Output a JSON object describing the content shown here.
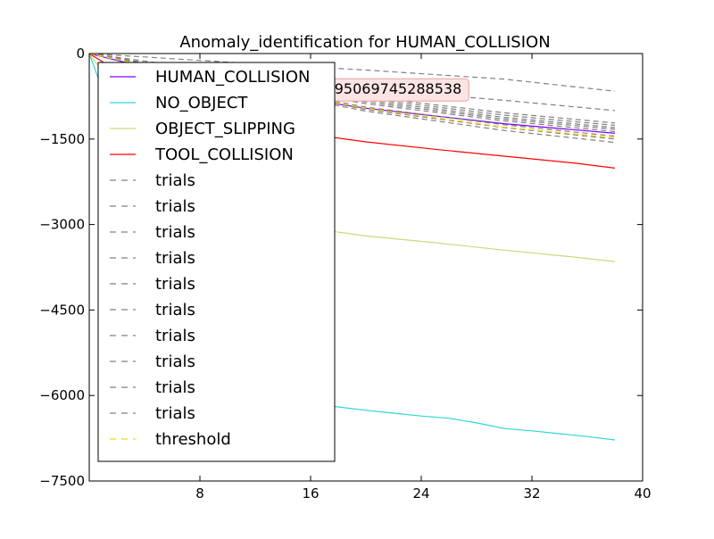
{
  "chart_data": {
    "type": "line",
    "title": "Anomaly_identification for HUMAN_COLLISION",
    "xlabel": "",
    "ylabel": "",
    "xlim": [
      0,
      40
    ],
    "ylim": [
      -7500,
      0
    ],
    "xticks": [
      8,
      16,
      24,
      32,
      40
    ],
    "yticks": [
      0,
      -1500,
      -3000,
      -4500,
      -6000,
      -7500
    ],
    "xtick_labels": [
      "8",
      "16",
      "24",
      "32",
      "40"
    ],
    "ytick_labels": [
      "0",
      "−1500",
      "−3000",
      "−4500",
      "−6000",
      "−7500"
    ],
    "grid": false,
    "legend_position": "upper-left",
    "annotation": {
      "text": "HUMAN_COLLISION: 89.95069745288538",
      "visible_text": "ON: 89.95069745288538",
      "x": 13.5,
      "y": -630
    },
    "series": [
      {
        "name": "HUMAN_COLLISION",
        "color": "#7f00ff",
        "style": "solid",
        "x": [
          0,
          10,
          20,
          30,
          38
        ],
        "y": [
          0,
          -600,
          -960,
          -1230,
          -1400
        ]
      },
      {
        "name": "NO_OBJECT",
        "color": "#2fd6d6",
        "style": "solid",
        "x": [
          0,
          6,
          12,
          16,
          18,
          20,
          22,
          24,
          26,
          27,
          28,
          29,
          30,
          32,
          34,
          36,
          38
        ],
        "y": [
          0,
          -4000,
          -5700,
          -6150,
          -6200,
          -6260,
          -6310,
          -6360,
          -6400,
          -6440,
          -6480,
          -6530,
          -6580,
          -6620,
          -6670,
          -6720,
          -6780
        ]
      },
      {
        "name": "OBJECT_SLIPPING",
        "color": "#c5dc7a",
        "style": "solid",
        "x": [
          0,
          6,
          12,
          17,
          20,
          25,
          30,
          35,
          38
        ],
        "y": [
          0,
          -2000,
          -2800,
          -3100,
          -3200,
          -3320,
          -3450,
          -3570,
          -3650
        ]
      },
      {
        "name": "TOOL_COLLISION",
        "color": "#ff0000",
        "style": "solid",
        "x": [
          0,
          6,
          12,
          17,
          20,
          25,
          30,
          35,
          38
        ],
        "y": [
          0,
          -900,
          -1300,
          -1450,
          -1550,
          -1680,
          -1800,
          -1920,
          -2010
        ]
      },
      {
        "name": "trials",
        "color": "#808080",
        "style": "dashed",
        "x": [
          0,
          10,
          20,
          30,
          38
        ],
        "y": [
          0,
          -150,
          -290,
          -450,
          -660
        ]
      },
      {
        "name": "trials",
        "color": "#808080",
        "style": "dashed",
        "x": [
          0,
          10,
          20,
          30,
          38
        ],
        "y": [
          0,
          -330,
          -620,
          -820,
          -1000
        ]
      },
      {
        "name": "trials",
        "color": "#808080",
        "style": "dashed",
        "x": [
          0,
          10,
          20,
          30,
          38
        ],
        "y": [
          0,
          -400,
          -760,
          -1040,
          -1220
        ]
      },
      {
        "name": "trials",
        "color": "#808080",
        "style": "dashed",
        "x": [
          0,
          10,
          20,
          30,
          38
        ],
        "y": [
          0,
          -420,
          -790,
          -1080,
          -1260
        ]
      },
      {
        "name": "trials",
        "color": "#808080",
        "style": "dashed",
        "x": [
          0,
          10,
          20,
          30,
          38
        ],
        "y": [
          0,
          -440,
          -820,
          -1120,
          -1300
        ]
      },
      {
        "name": "trials",
        "color": "#808080",
        "style": "dashed",
        "x": [
          0,
          10,
          20,
          30,
          38
        ],
        "y": [
          0,
          -455,
          -850,
          -1150,
          -1330
        ]
      },
      {
        "name": "trials",
        "color": "#808080",
        "style": "dashed",
        "x": [
          0,
          10,
          20,
          30,
          38
        ],
        "y": [
          0,
          -470,
          -880,
          -1180,
          -1370
        ]
      },
      {
        "name": "trials",
        "color": "#808080",
        "style": "dashed",
        "x": [
          0,
          10,
          20,
          30,
          38
        ],
        "y": [
          0,
          -500,
          -940,
          -1250,
          -1450
        ]
      },
      {
        "name": "trials",
        "color": "#808080",
        "style": "dashed",
        "x": [
          0,
          10,
          20,
          30,
          38
        ],
        "y": [
          0,
          -520,
          -980,
          -1300,
          -1500
        ]
      },
      {
        "name": "trials",
        "color": "#808080",
        "style": "dashed",
        "x": [
          0,
          10,
          20,
          30,
          38
        ],
        "y": [
          0,
          -540,
          -1010,
          -1350,
          -1560
        ]
      },
      {
        "name": "threshold",
        "color": "#ffd700",
        "style": "dashed",
        "x": [
          0,
          10,
          20,
          30,
          38
        ],
        "y": [
          0,
          -510,
          -960,
          -1290,
          -1480
        ]
      }
    ]
  }
}
